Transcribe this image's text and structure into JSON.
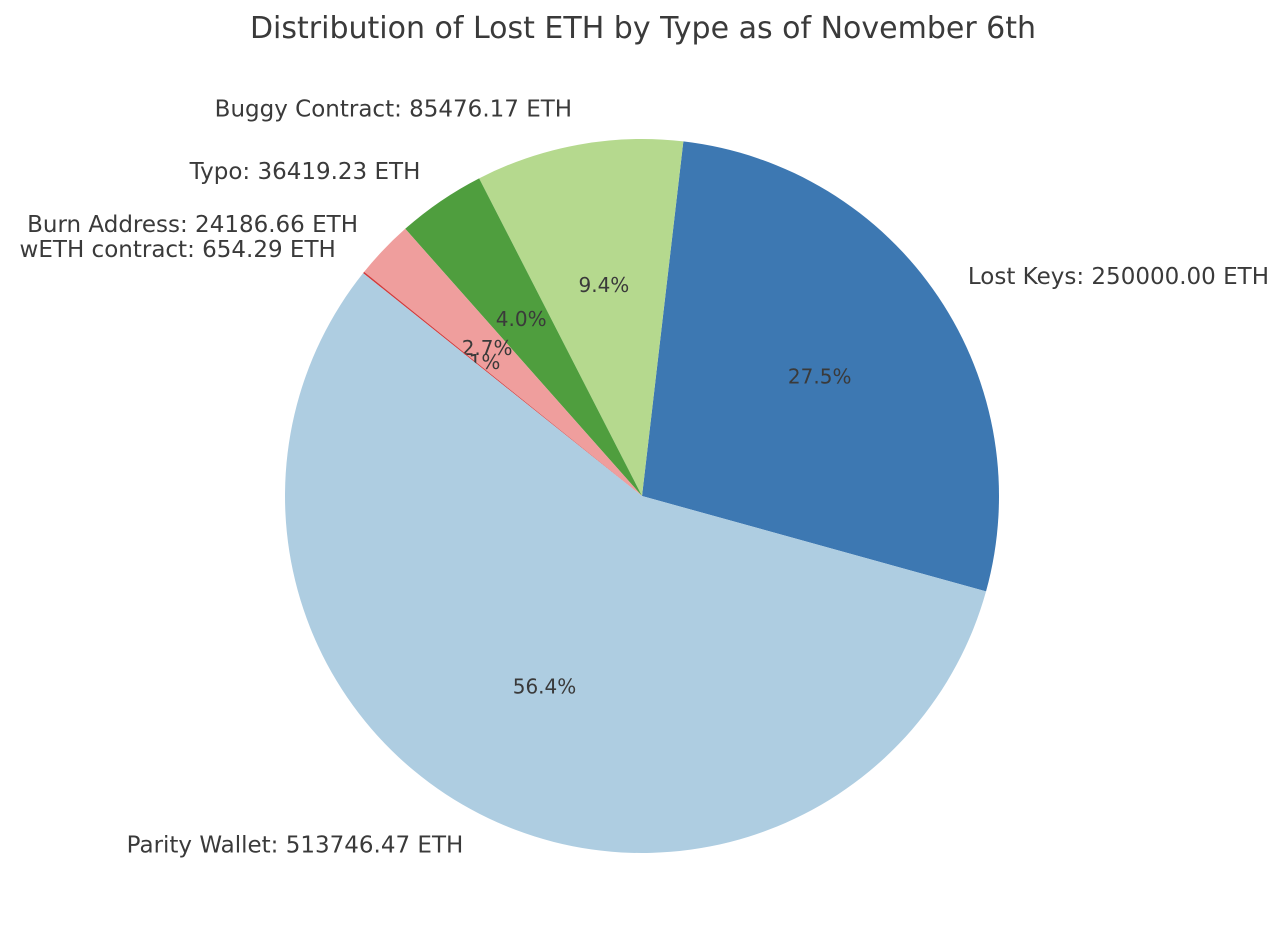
{
  "title": "Distribution of Lost ETH by Type as of November 6th",
  "text_color": "#3a3a3a",
  "background_color": "#ffffff",
  "chart_data": {
    "type": "pie",
    "title": "Distribution of Lost ETH by Type as of November 6th",
    "unit": "ETH",
    "legend": "none",
    "slices": [
      {
        "label": "Lost Keys",
        "value": 250000.0,
        "display_label": "Lost Keys: 250000.00 ETH",
        "pct": 27.5,
        "pct_label": "27.5%",
        "color": "#3d78b2"
      },
      {
        "label": "Buggy Contract",
        "value": 85476.17,
        "display_label": "Buggy Contract: 85476.17 ETH",
        "pct": 9.4,
        "pct_label": "9.4%",
        "color": "#b5d98e"
      },
      {
        "label": "Typo",
        "value": 36419.23,
        "display_label": "Typo: 36419.23 ETH",
        "pct": 4.0,
        "pct_label": "4.0%",
        "color": "#4f9e3e"
      },
      {
        "label": "Burn Address",
        "value": 24186.66,
        "display_label": "Burn Address: 24186.66 ETH",
        "pct": 2.7,
        "pct_label": "2.7%",
        "color": "#ef9e9d"
      },
      {
        "label": "wETH contract",
        "value": 654.29,
        "display_label": "wETH contract: 654.29 ETH",
        "pct": 0.1,
        "pct_label": "0.1%",
        "color": "#d23b3c"
      },
      {
        "label": "Parity Wallet",
        "value": 513746.47,
        "display_label": "Parity Wallet: 513746.47 ETH",
        "pct": 56.4,
        "pct_label": "56.4%",
        "color": "#aecde1"
      }
    ],
    "layout": {
      "start_angle_deg": -15.5,
      "direction": "counterclockwise",
      "label_distance": 1.1,
      "pct_distance": 0.6
    }
  }
}
